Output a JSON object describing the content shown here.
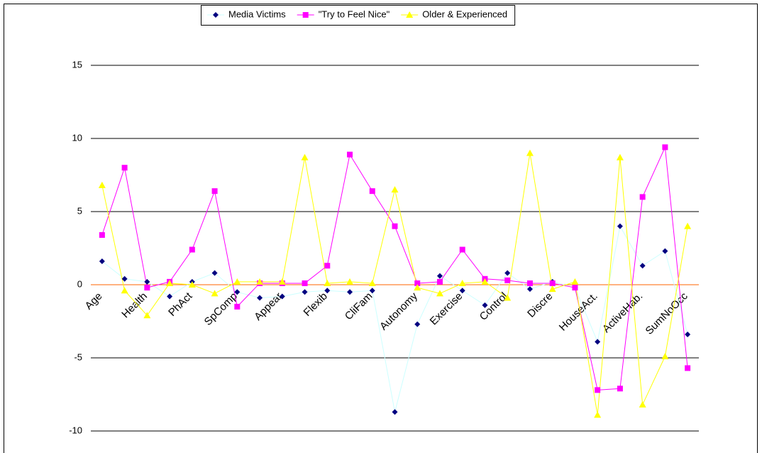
{
  "chart_data": {
    "type": "line",
    "categories": [
      "Age",
      null,
      "Health",
      null,
      "PhAct",
      null,
      "SpComp",
      null,
      "Appear",
      null,
      "Flexib",
      null,
      "CliFam",
      null,
      "Autonomy",
      null,
      "Exercise",
      null,
      "Control",
      null,
      "Discre",
      null,
      "HouseAct.",
      null,
      "ActiveHab.",
      null,
      "SumNoOcc"
    ],
    "series": [
      {
        "name": "Media Victims",
        "color": "#ccffff",
        "marker_color": "#000080",
        "marker": "diamond",
        "values": [
          1.6,
          0.4,
          0.2,
          -0.8,
          0.2,
          0.8,
          -0.5,
          -0.9,
          -0.8,
          -0.5,
          -0.4,
          -0.5,
          -0.4,
          -8.7,
          -2.7,
          0.6,
          -0.4,
          -1.4,
          0.8,
          -0.3,
          0.2,
          -0.2,
          -3.9,
          4.0,
          1.3,
          2.3,
          -3.4
        ]
      },
      {
        "name": "\"Try to Feel Nice\"",
        "color": "#ff00ff",
        "marker_color": "#ff00ff",
        "marker": "square",
        "values": [
          3.4,
          8.0,
          -0.2,
          0.2,
          2.4,
          6.4,
          -1.5,
          0.1,
          0.1,
          0.1,
          1.3,
          8.9,
          6.4,
          4.0,
          0.1,
          0.2,
          2.4,
          0.4,
          0.3,
          0.1,
          0.1,
          -0.2,
          -7.2,
          -7.1,
          6.0,
          9.4,
          -5.7
        ]
      },
      {
        "name": "Older & Experienced",
        "color": "#ffff00",
        "marker_color": "#ffff00",
        "marker": "triangle",
        "values": [
          6.8,
          -0.4,
          -2.1,
          0.1,
          0.0,
          -0.6,
          0.2,
          0.2,
          0.2,
          8.7,
          0.1,
          0.2,
          0.1,
          6.5,
          -0.2,
          -0.6,
          0.1,
          0.2,
          -0.9,
          9.0,
          -0.3,
          0.2,
          -8.9,
          8.7,
          -8.2,
          -4.9,
          4.0
        ]
      }
    ],
    "ylim": [
      -10,
      15
    ],
    "yticks": [
      -10,
      -5,
      0,
      5,
      10,
      15
    ],
    "grid": true,
    "zero_line_color": "#ff6600",
    "legend": "top"
  }
}
